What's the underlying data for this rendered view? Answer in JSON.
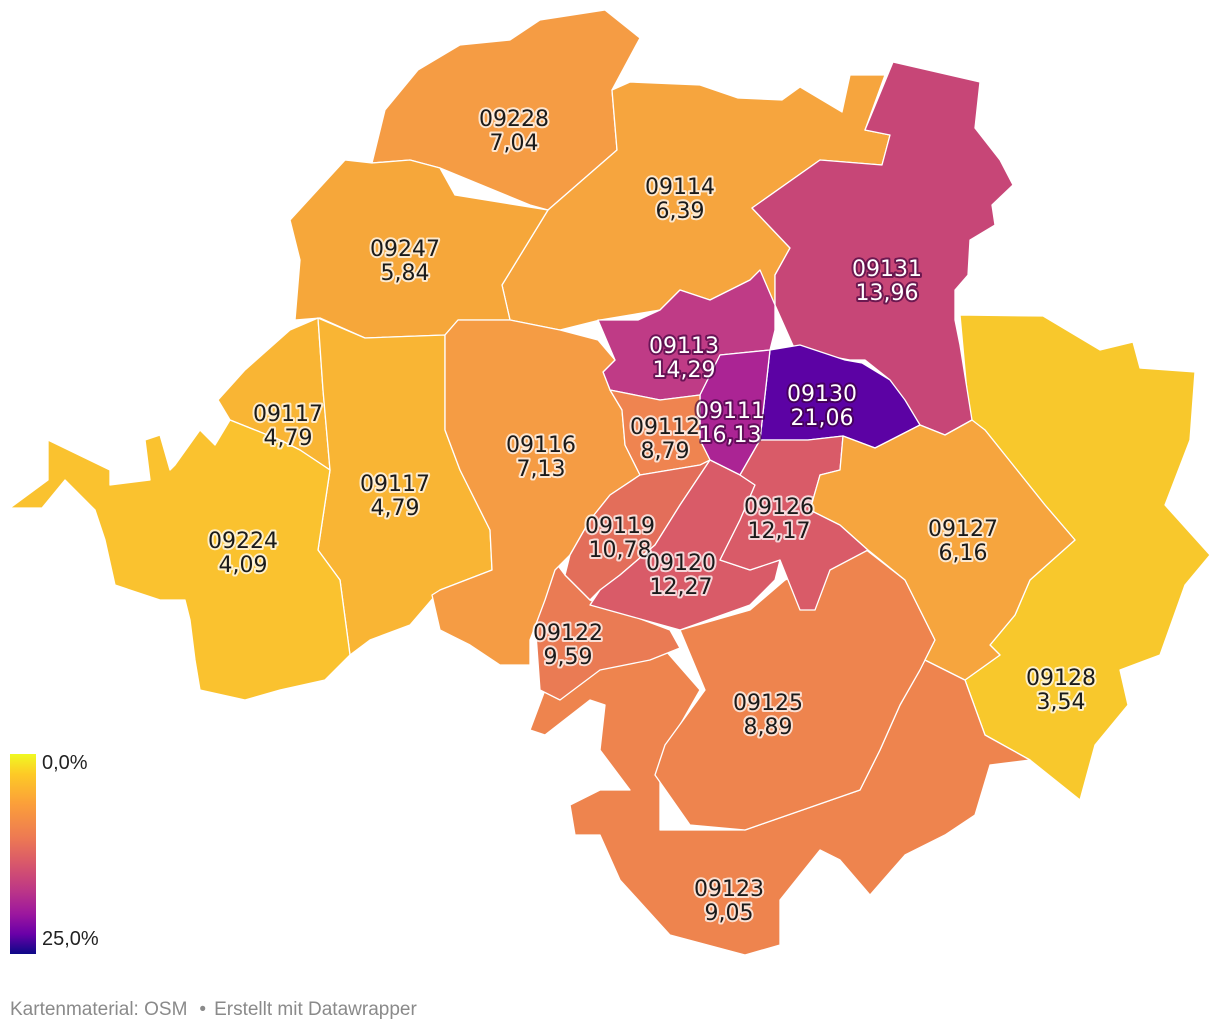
{
  "colors": {
    "scale_start": "#f0f921",
    "scale_end": "#0d0887",
    "region_outline": "#ffffff"
  },
  "legend": {
    "min_label": "0,0%",
    "max_label": "25,0%",
    "min_value": 0,
    "max_value": 25
  },
  "footer": {
    "source": "Kartenmaterial: OSM",
    "separator": "•",
    "credit": "Erstellt mit Datawrapper"
  },
  "regions": [
    {
      "id": "09228",
      "value_label": "7,04",
      "value": 7.04,
      "color": "#f59c44"
    },
    {
      "id": "09114",
      "value_label": "6,39",
      "value": 6.39,
      "color": "#f6a53e"
    },
    {
      "id": "09131",
      "value_label": "13,96",
      "value": 13.96,
      "color": "#c74677"
    },
    {
      "id": "09247",
      "value_label": "5,84",
      "value": 5.84,
      "color": "#f6a73a"
    },
    {
      "id": "09113",
      "value_label": "14,29",
      "value": 14.29,
      "color": "#bf3b86"
    },
    {
      "id": "09130",
      "value_label": "21,06",
      "value": 21.06,
      "color": "#5c02a4"
    },
    {
      "id": "09111",
      "value_label": "16,13",
      "value": 16.13,
      "color": "#ab2494"
    },
    {
      "id": "09117",
      "value_label": "4,79",
      "value": 4.79,
      "color": "#f9b534"
    },
    {
      "id": "09117",
      "value_label": "4,79",
      "value": 4.79,
      "color": "#f9b534"
    },
    {
      "id": "09116",
      "value_label": "7,13",
      "value": 7.13,
      "color": "#f59c44"
    },
    {
      "id": "09112",
      "value_label": "8,79",
      "value": 8.79,
      "color": "#ef8450"
    },
    {
      "id": "09224",
      "value_label": "4,09",
      "value": 4.09,
      "color": "#fac22f"
    },
    {
      "id": "09119",
      "value_label": "10,78",
      "value": 10.78,
      "color": "#e36e5a"
    },
    {
      "id": "09120",
      "value_label": "12,27",
      "value": 12.27,
      "color": "#d95b68"
    },
    {
      "id": "09126",
      "value_label": "12,17",
      "value": 12.17,
      "color": "#d95b68"
    },
    {
      "id": "09127",
      "value_label": "6,16",
      "value": 6.16,
      "color": "#f6a53e"
    },
    {
      "id": "09122",
      "value_label": "9,59",
      "value": 9.59,
      "color": "#ea7b54"
    },
    {
      "id": "09125",
      "value_label": "8,89",
      "value": 8.89,
      "color": "#ee844e"
    },
    {
      "id": "09128",
      "value_label": "3,54",
      "value": 3.54,
      "color": "#f8c82c"
    },
    {
      "id": "09123",
      "value_label": "9,05",
      "value": 9.05,
      "color": "#ee844e"
    }
  ]
}
